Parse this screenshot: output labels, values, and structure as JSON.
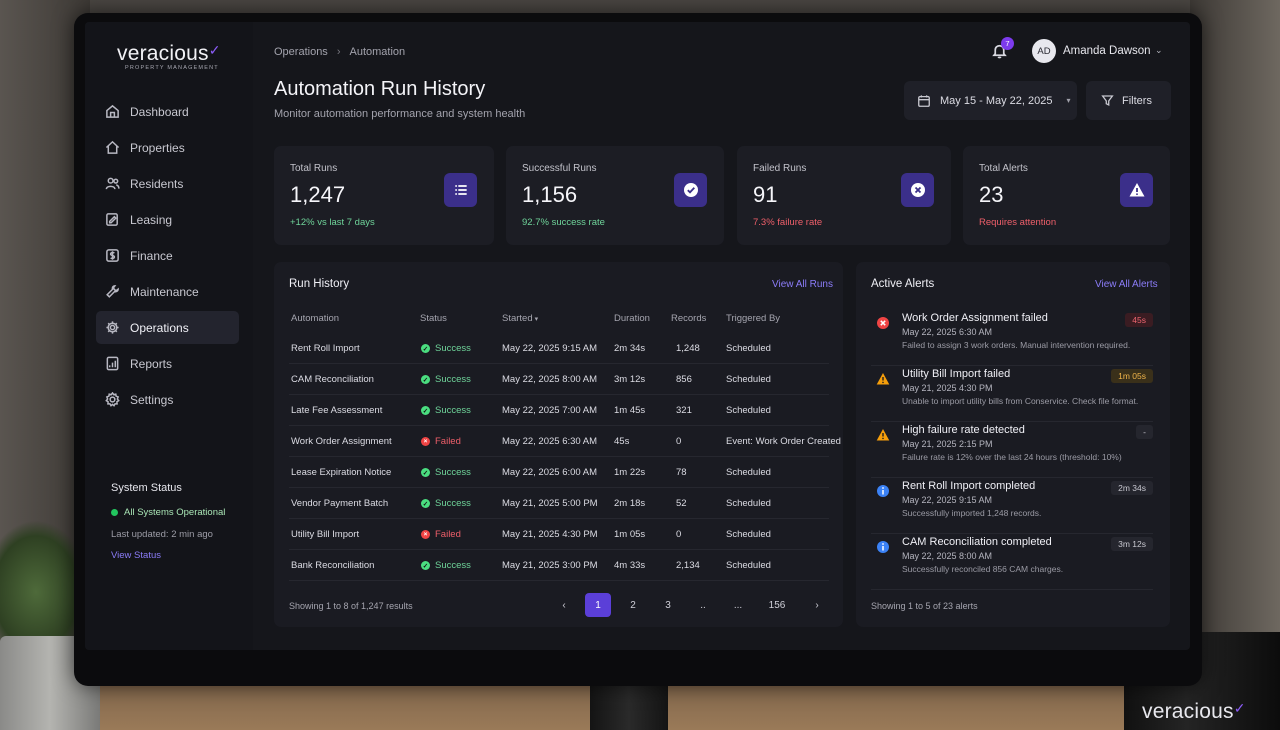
{
  "app": {
    "logo": "veracious",
    "logo_sub": "PROPERTY MANAGEMENT"
  },
  "sidebar": {
    "items": [
      {
        "label": "Dashboard",
        "icon": "home-icon"
      },
      {
        "label": "Properties",
        "icon": "house-icon"
      },
      {
        "label": "Residents",
        "icon": "users-icon"
      },
      {
        "label": "Leasing",
        "icon": "document-edit-icon"
      },
      {
        "label": "Finance",
        "icon": "dollar-icon"
      },
      {
        "label": "Maintenance",
        "icon": "wrench-icon"
      },
      {
        "label": "Operations",
        "icon": "gear-icon",
        "active": true
      },
      {
        "label": "Reports",
        "icon": "report-icon"
      },
      {
        "label": "Settings",
        "icon": "settings-icon"
      }
    ],
    "system_status": {
      "title": "System Status",
      "status": "All Systems Operational",
      "updated": "Last updated: 2 min ago",
      "link": "View Status"
    }
  },
  "header": {
    "breadcrumb": [
      "Operations",
      "Automation"
    ],
    "notifications_count": "7",
    "user": {
      "initials": "AD",
      "name": "Amanda Dawson"
    },
    "title": "Automation Run History",
    "subtitle": "Monitor automation performance and system health",
    "date_range": "May 15 - May 22, 2025",
    "filters_label": "Filters"
  },
  "stats": [
    {
      "label": "Total Runs",
      "value": "1,247",
      "sub": "+12% vs last 7 days",
      "tone": "green",
      "icon": "list-icon"
    },
    {
      "label": "Successful Runs",
      "value": "1,156",
      "sub": "92.7% success rate",
      "tone": "green",
      "icon": "check-circle-icon"
    },
    {
      "label": "Failed Runs",
      "value": "91",
      "sub": "7.3% failure rate",
      "tone": "red",
      "icon": "x-circle-icon"
    },
    {
      "label": "Total Alerts",
      "value": "23",
      "sub": "Requires attention",
      "tone": "red",
      "icon": "warning-icon"
    }
  ],
  "run_history": {
    "title": "Run History",
    "view_all": "View All Runs",
    "columns": [
      "Automation",
      "Status",
      "Started",
      "Duration",
      "Records",
      "Triggered By"
    ],
    "rows": [
      {
        "automation": "Rent Roll Import",
        "status": "Success",
        "started": "May 22, 2025 9:15 AM",
        "duration": "2m 34s",
        "records": "1,248",
        "trigger": "Scheduled"
      },
      {
        "automation": "CAM Reconciliation",
        "status": "Success",
        "started": "May 22, 2025 8:00 AM",
        "duration": "3m 12s",
        "records": "856",
        "trigger": "Scheduled"
      },
      {
        "automation": "Late Fee Assessment",
        "status": "Success",
        "started": "May 22, 2025 7:00 AM",
        "duration": "1m 45s",
        "records": "321",
        "trigger": "Scheduled"
      },
      {
        "automation": "Work Order Assignment",
        "status": "Failed",
        "started": "May 22, 2025 6:30 AM",
        "duration": "45s",
        "records": "0",
        "trigger": "Event: Work Order Created"
      },
      {
        "automation": "Lease Expiration Notice",
        "status": "Success",
        "started": "May 22, 2025 6:00 AM",
        "duration": "1m 22s",
        "records": "78",
        "trigger": "Scheduled"
      },
      {
        "automation": "Vendor Payment Batch",
        "status": "Success",
        "started": "May 21, 2025 5:00 PM",
        "duration": "2m 18s",
        "records": "52",
        "trigger": "Scheduled"
      },
      {
        "automation": "Utility Bill Import",
        "status": "Failed",
        "started": "May 21, 2025 4:30 PM",
        "duration": "1m 05s",
        "records": "0",
        "trigger": "Scheduled"
      },
      {
        "automation": "Bank Reconciliation",
        "status": "Success",
        "started": "May 21, 2025 3:00 PM",
        "duration": "4m 33s",
        "records": "2,134",
        "trigger": "Scheduled"
      }
    ],
    "footer": "Showing 1 to 8 of 1,247 results",
    "pages": [
      "1",
      "2",
      "3",
      "..",
      "...",
      "156"
    ],
    "current_page": "1"
  },
  "alerts": {
    "title": "Active Alerts",
    "view_all": "View All Alerts",
    "items": [
      {
        "title": "Work Order Assignment failed",
        "date": "May 22, 2025 6:30 AM",
        "desc": "Failed to assign 3 work orders. Manual intervention required.",
        "badge": "45s",
        "level": "error"
      },
      {
        "title": "Utility Bill Import failed",
        "date": "May 21, 2025 4:30 PM",
        "desc": "Unable to import utility bills from Conservice. Check file format.",
        "badge": "1m 05s",
        "level": "warning"
      },
      {
        "title": "High failure rate detected",
        "date": "May 21, 2025 2:15 PM",
        "desc": "Failure rate is 12% over the last 24 hours (threshold: 10%)",
        "badge": "-",
        "level": "warning"
      },
      {
        "title": "Rent Roll Import completed",
        "date": "May 22, 2025 9:15 AM",
        "desc": "Successfully imported 1,248 records.",
        "badge": "2m 34s",
        "level": "info"
      },
      {
        "title": "CAM Reconciliation completed",
        "date": "May 22, 2025 8:00 AM",
        "desc": "Successfully reconciled 856 CAM charges.",
        "badge": "3m 12s",
        "level": "info"
      }
    ],
    "footer": "Showing 1 to 5 of 23 alerts"
  },
  "mug": {
    "logo": "veracious"
  },
  "colors": {
    "accent": "#7c3aed",
    "success": "#4ade80",
    "error": "#ef4444",
    "warning": "#f59e0b",
    "info": "#3b82f6"
  }
}
